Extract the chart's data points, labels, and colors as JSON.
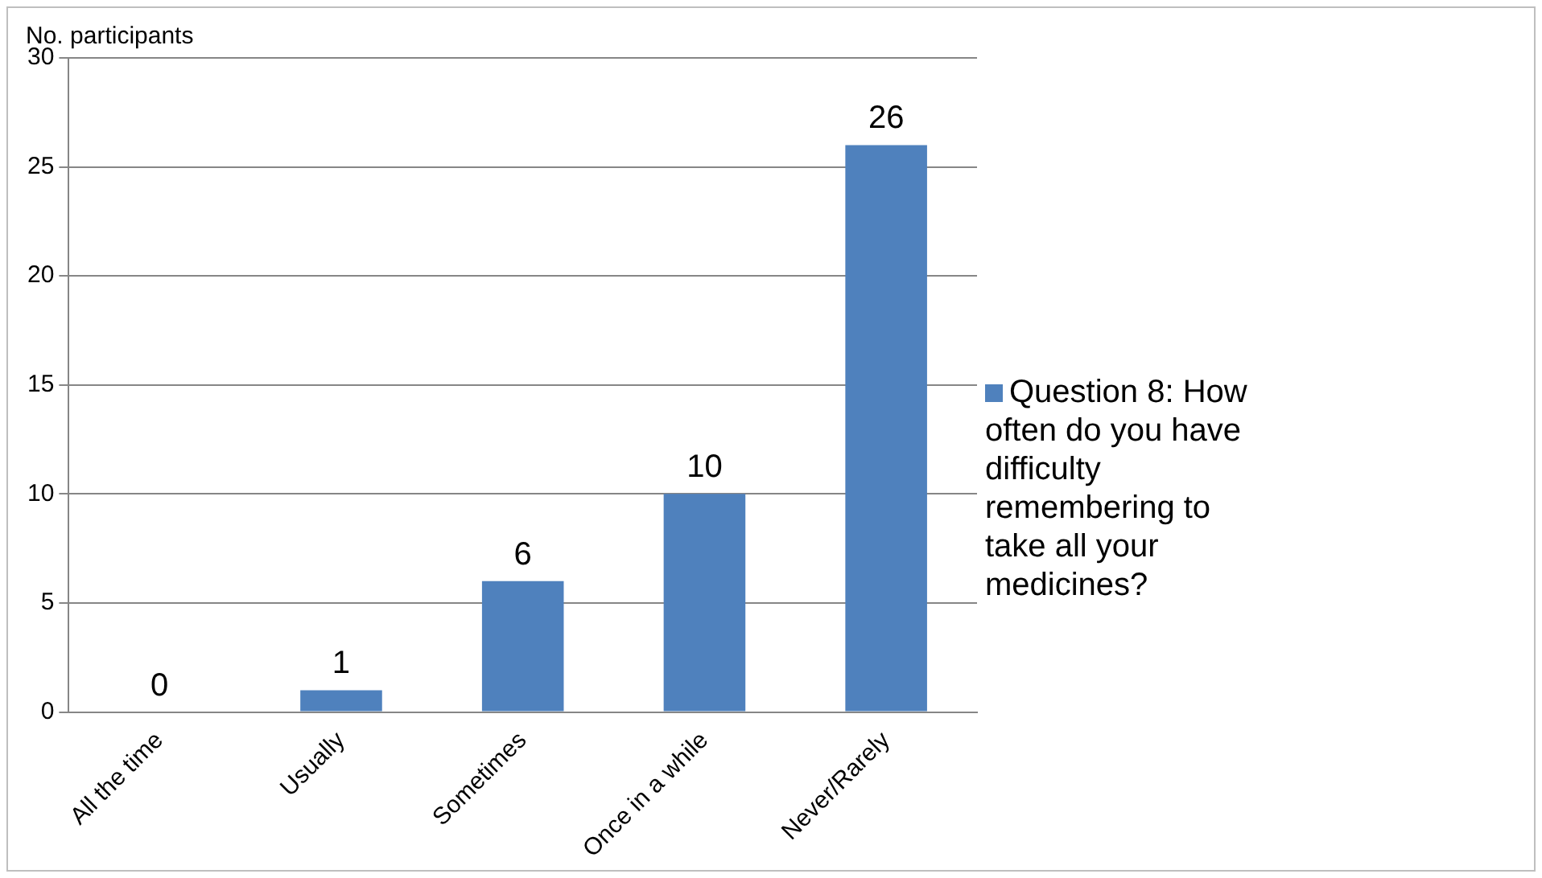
{
  "chart_data": {
    "type": "bar",
    "ylabel": "No. participants",
    "categories": [
      "All the time",
      "Usually",
      "Sometimes",
      "Once in a while",
      "Never/Rarely"
    ],
    "series": [
      {
        "name": "Question 8: How often do you have difficulty remembering to take all your medicines?",
        "color": "#4f81bd",
        "values": [
          0,
          1,
          6,
          10,
          26
        ]
      }
    ],
    "ylim": [
      0,
      30
    ],
    "yticks": [
      0,
      5,
      10,
      15,
      20,
      25,
      30
    ],
    "grid": "y",
    "legend": "right",
    "data_labels": true
  }
}
